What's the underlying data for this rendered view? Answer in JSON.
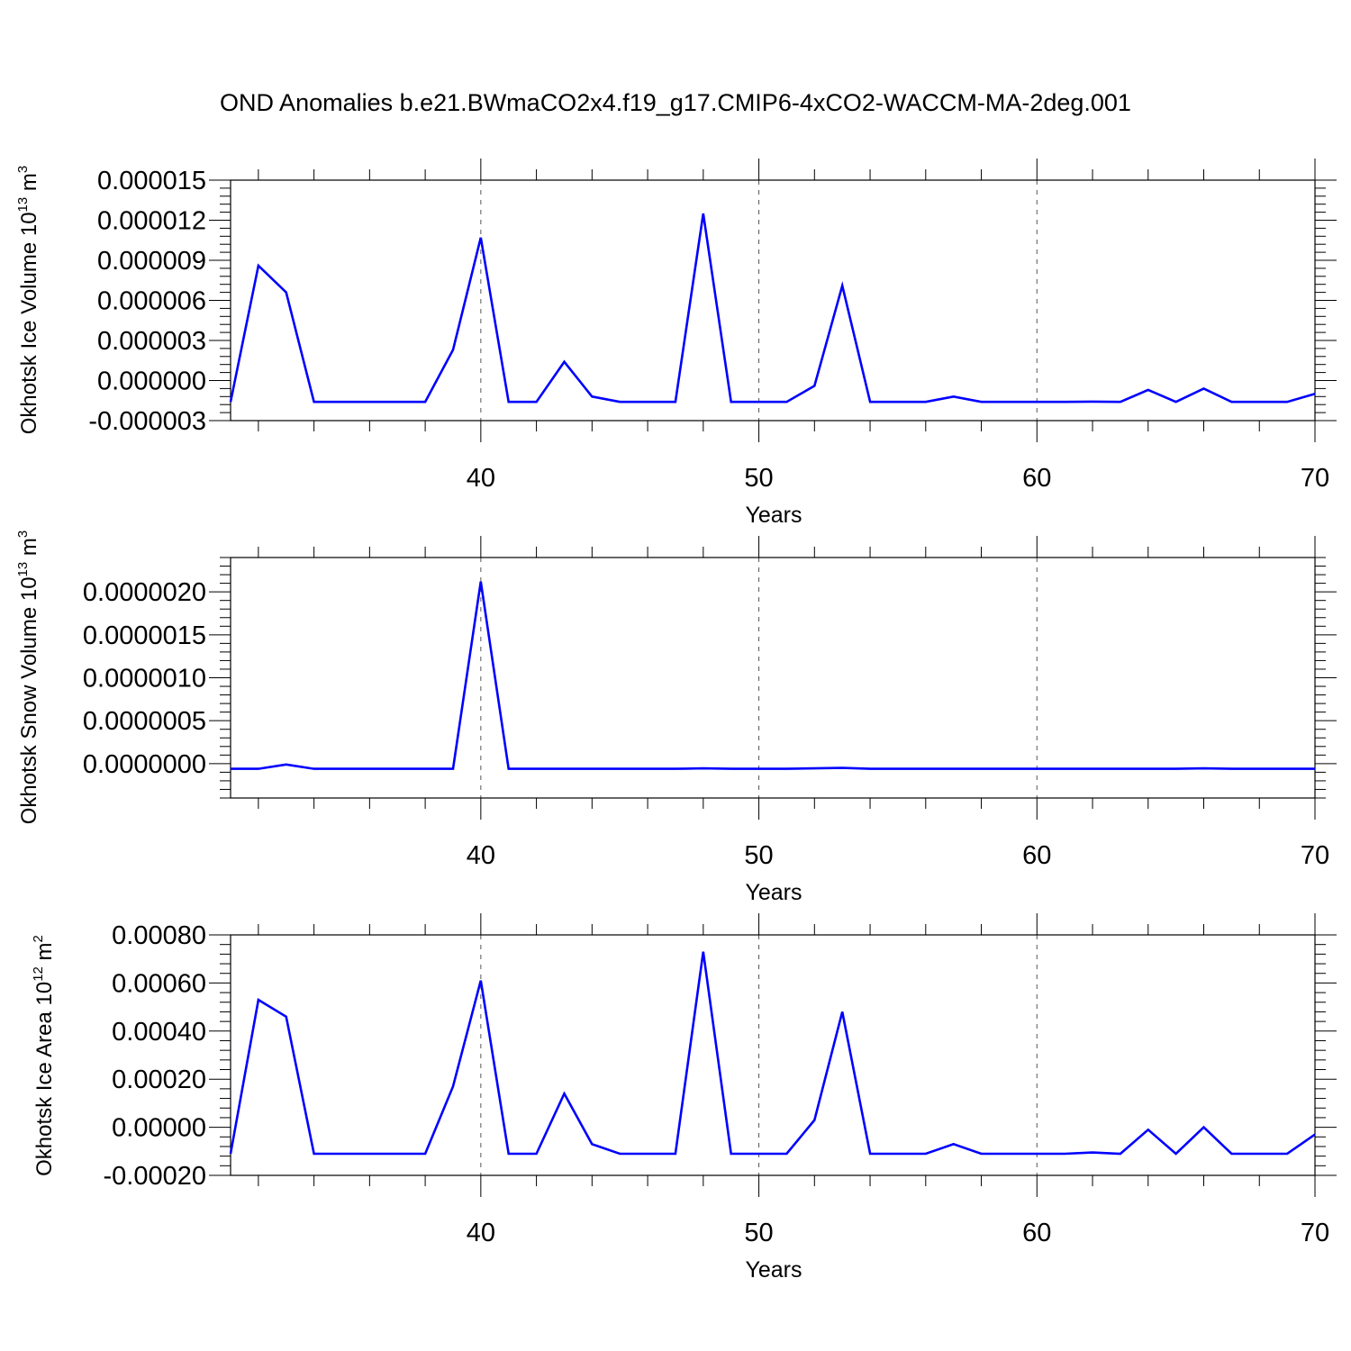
{
  "title": "OND Anomalies b.e21.BWmaCO2x4.f19_g17.CMIP6-4xCO2-WACCM-MA-2deg.001",
  "line_color": "#0000ff",
  "chart_data": [
    {
      "type": "line",
      "ylabel": {
        "text": "Okhotsk Ice Volume 10",
        "sup": "13",
        "unit": "m",
        "unit_sup": "3"
      },
      "xlabel": "Years",
      "xlim": [
        31,
        70
      ],
      "ylim": [
        -3e-06,
        1.5e-05
      ],
      "xticks": [
        40,
        50,
        60,
        70
      ],
      "xtick_labels": [
        "40",
        "50",
        "60",
        "70"
      ],
      "yticks": [
        -3e-06,
        0,
        3e-06,
        6e-06,
        9e-06,
        1.2e-05,
        1.5e-05
      ],
      "ytick_labels": [
        "-0.000003",
        "0.000000",
        "0.000003",
        "0.000006",
        "0.000009",
        "0.000012",
        "0.000015"
      ],
      "grid": "vertical dashed at major x ticks",
      "x": [
        31,
        32,
        33,
        34,
        35,
        36,
        37,
        38,
        39,
        40,
        41,
        42,
        43,
        44,
        45,
        46,
        47,
        48,
        49,
        50,
        51,
        52,
        53,
        54,
        55,
        56,
        57,
        58,
        59,
        60,
        61,
        62,
        63,
        64,
        65,
        66,
        67,
        68,
        69,
        70
      ],
      "y": [
        -1.6e-06,
        8.6e-06,
        6.6e-06,
        -1.6e-06,
        -1.6e-06,
        -1.6e-06,
        -1.6e-06,
        -1.6e-06,
        2.3e-06,
        1.07e-05,
        -1.6e-06,
        -1.6e-06,
        1.4e-06,
        -1.2e-06,
        -1.6e-06,
        -1.6e-06,
        -1.6e-06,
        1.25e-05,
        -1.6e-06,
        -1.6e-06,
        -1.6e-06,
        -4e-07,
        7.1e-06,
        -1.6e-06,
        -1.6e-06,
        -1.6e-06,
        -1.2e-06,
        -1.6e-06,
        -1.6e-06,
        -1.6e-06,
        -1.6e-06,
        -1.58e-06,
        -1.6e-06,
        -7e-07,
        -1.6e-06,
        -6e-07,
        -1.6e-06,
        -1.6e-06,
        -1.6e-06,
        -1e-06
      ]
    },
    {
      "type": "line",
      "ylabel": {
        "text": "Okhotsk Snow Volume 10",
        "sup": "13",
        "unit": "m",
        "unit_sup": "3"
      },
      "xlabel": "Years",
      "xlim": [
        31,
        70
      ],
      "ylim": [
        -4e-07,
        2.4e-06
      ],
      "xticks": [
        40,
        50,
        60,
        70
      ],
      "xtick_labels": [
        "40",
        "50",
        "60",
        "70"
      ],
      "yticks": [
        0,
        5e-07,
        1e-06,
        1.5e-06,
        2e-06
      ],
      "ytick_labels": [
        "0.0000000",
        "0.0000005",
        "0.0000010",
        "0.0000015",
        "0.0000020"
      ],
      "grid": "vertical dashed at major x ticks",
      "x": [
        31,
        32,
        33,
        34,
        35,
        36,
        37,
        38,
        39,
        40,
        41,
        42,
        43,
        44,
        45,
        46,
        47,
        48,
        49,
        50,
        51,
        52,
        53,
        54,
        55,
        56,
        57,
        58,
        59,
        60,
        61,
        62,
        63,
        64,
        65,
        66,
        67,
        68,
        69,
        70
      ],
      "y": [
        -6e-08,
        -6e-08,
        -1e-08,
        -6e-08,
        -6e-08,
        -6e-08,
        -6e-08,
        -6e-08,
        -6e-08,
        2.12e-06,
        -6e-08,
        -6e-08,
        -6e-08,
        -6e-08,
        -6e-08,
        -6e-08,
        -6e-08,
        -5.5e-08,
        -6e-08,
        -6e-08,
        -6e-08,
        -5.5e-08,
        -5e-08,
        -6e-08,
        -6e-08,
        -6e-08,
        -6e-08,
        -6e-08,
        -6e-08,
        -6e-08,
        -6e-08,
        -6e-08,
        -6e-08,
        -6e-08,
        -6e-08,
        -5.5e-08,
        -6e-08,
        -6e-08,
        -6e-08,
        -6e-08
      ]
    },
    {
      "type": "line",
      "ylabel": {
        "text": "Okhotsk Ice Area 10",
        "sup": "12",
        "unit": "m",
        "unit_sup": "2"
      },
      "xlabel": "Years",
      "xlim": [
        31,
        70
      ],
      "ylim": [
        -0.0002,
        0.0008
      ],
      "xticks": [
        40,
        50,
        60,
        70
      ],
      "xtick_labels": [
        "40",
        "50",
        "60",
        "70"
      ],
      "yticks": [
        -0.0002,
        0,
        0.0002,
        0.0004,
        0.0006,
        0.0008
      ],
      "ytick_labels": [
        "-0.00020",
        "0.00000",
        "0.00020",
        "0.00040",
        "0.00060",
        "0.00080"
      ],
      "grid": "vertical dashed at major x ticks",
      "x": [
        31,
        32,
        33,
        34,
        35,
        36,
        37,
        38,
        39,
        40,
        41,
        42,
        43,
        44,
        45,
        46,
        47,
        48,
        49,
        50,
        51,
        52,
        53,
        54,
        55,
        56,
        57,
        58,
        59,
        60,
        61,
        62,
        63,
        64,
        65,
        66,
        67,
        68,
        69,
        70
      ],
      "y": [
        -0.00011,
        0.00053,
        0.00046,
        -0.00011,
        -0.00011,
        -0.00011,
        -0.00011,
        -0.00011,
        0.00017,
        0.00061,
        -0.00011,
        -0.00011,
        0.00014,
        -7e-05,
        -0.00011,
        -0.00011,
        -0.00011,
        0.00073,
        -0.00011,
        -0.00011,
        -0.00011,
        3e-05,
        0.00048,
        -0.00011,
        -0.00011,
        -0.00011,
        -7e-05,
        -0.00011,
        -0.00011,
        -0.00011,
        -0.00011,
        -0.000105,
        -0.00011,
        -1e-05,
        -0.00011,
        0,
        -0.00011,
        -0.00011,
        -0.00011,
        -3e-05
      ]
    }
  ]
}
